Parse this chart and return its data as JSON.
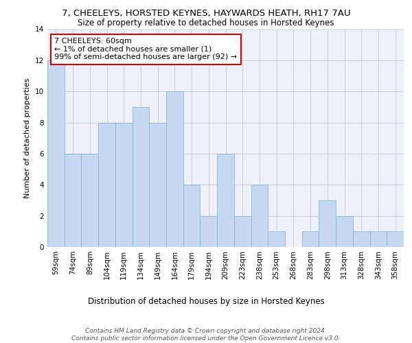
{
  "title1": "7, CHEELEYS, HORSTED KEYNES, HAYWARDS HEATH, RH17 7AU",
  "title2": "Size of property relative to detached houses in Horsted Keynes",
  "xlabel": "Distribution of detached houses by size in Horsted Keynes",
  "ylabel": "Number of detached properties",
  "categories": [
    "59sqm",
    "74sqm",
    "89sqm",
    "104sqm",
    "119sqm",
    "134sqm",
    "149sqm",
    "164sqm",
    "179sqm",
    "194sqm",
    "209sqm",
    "223sqm",
    "238sqm",
    "253sqm",
    "268sqm",
    "283sqm",
    "298sqm",
    "313sqm",
    "328sqm",
    "343sqm",
    "358sqm"
  ],
  "values": [
    12,
    6,
    6,
    8,
    8,
    9,
    8,
    10,
    4,
    2,
    6,
    2,
    4,
    1,
    0,
    1,
    3,
    2,
    1,
    1,
    1
  ],
  "bar_color": "#c5d8f0",
  "bar_edge_color": "#7aadd4",
  "annotation_text": "7 CHEELEYS: 60sqm\n← 1% of detached houses are smaller (1)\n99% of semi-detached houses are larger (92) →",
  "annotation_box_color": "#ffffff",
  "annotation_box_edge_color": "#cc0000",
  "ylim": [
    0,
    14
  ],
  "yticks": [
    0,
    2,
    4,
    6,
    8,
    10,
    12,
    14
  ],
  "grid_color": "#c0c8d8",
  "background_color": "#eef2f8",
  "footer": "Contains HM Land Registry data © Crown copyright and database right 2024.\nContains public sector information licensed under the Open Government Licence v3.0.",
  "title1_fontsize": 9.5,
  "title2_fontsize": 8.5,
  "xlabel_fontsize": 8.5,
  "ylabel_fontsize": 8,
  "tick_fontsize": 7.5,
  "annotation_fontsize": 8,
  "footer_fontsize": 6.5
}
